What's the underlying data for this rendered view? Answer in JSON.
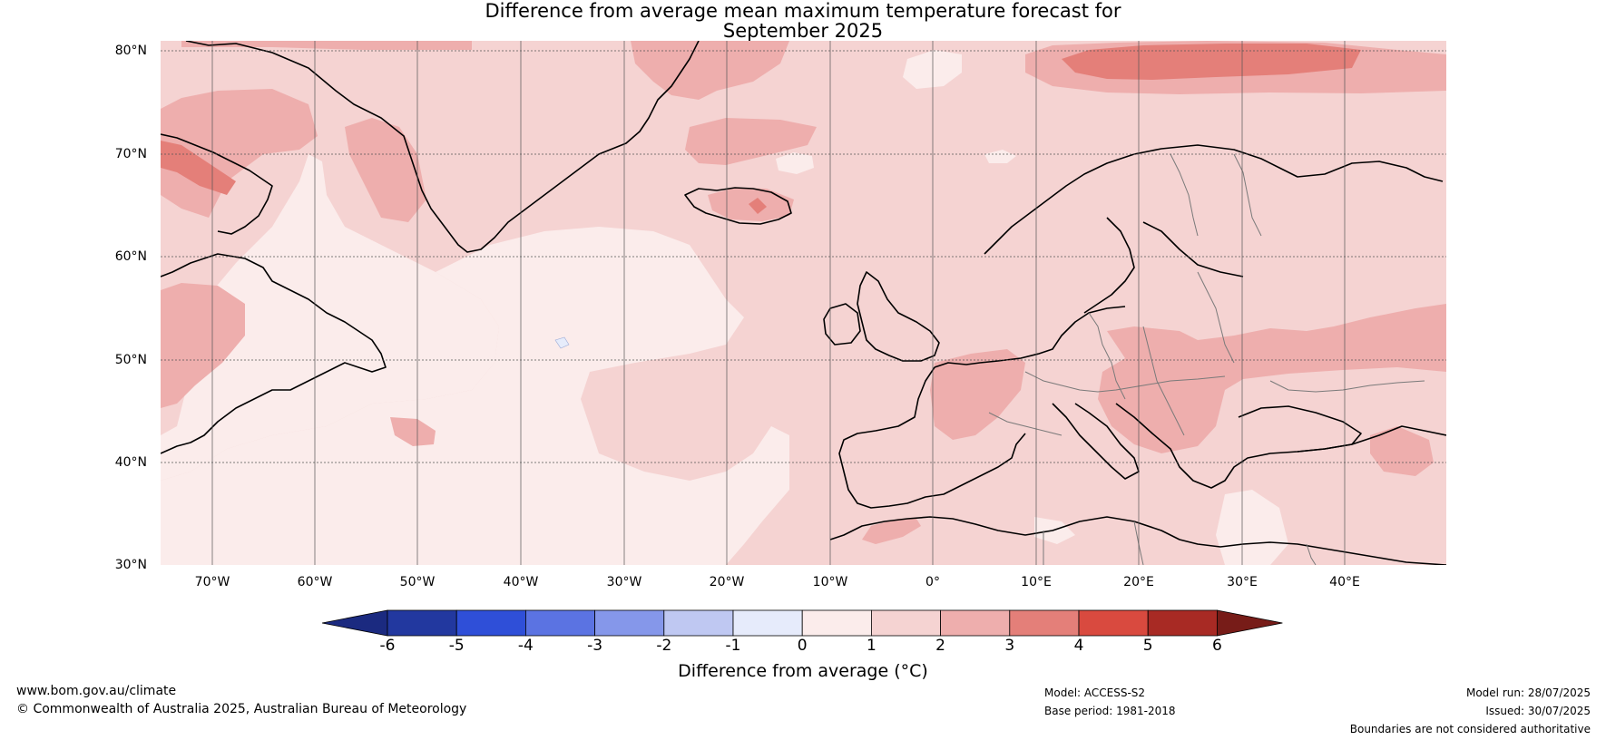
{
  "title": {
    "line1": "Difference from average mean maximum temperature forecast for",
    "line2": "September 2025"
  },
  "map": {
    "latitude_labels": [
      "80°N",
      "70°N",
      "60°N",
      "50°N",
      "40°N",
      "30°N"
    ],
    "longitude_labels": [
      "70°W",
      "60°W",
      "50°W",
      "40°W",
      "30°W",
      "20°W",
      "10°W",
      "0°",
      "10°E",
      "20°E",
      "30°E",
      "40°E"
    ],
    "palette": {
      "anom_0_1": "#fbeceb",
      "anom_1_2": "#f5d3d2",
      "anom_2_3": "#eeaead",
      "anom_3_4": "#e47f79",
      "anom_neg_1_0": "#e6ecfb",
      "coastline": "#000000",
      "borders": "#7a7a7a",
      "gridlines": "#555555"
    }
  },
  "colorbar": {
    "tick_labels": [
      "-6",
      "-5",
      "-4",
      "-3",
      "-2",
      "-1",
      "0",
      "1",
      "2",
      "3",
      "4",
      "5",
      "6"
    ],
    "colors": [
      "#22389f",
      "#2f4fd8",
      "#5b73e2",
      "#8597ea",
      "#bfc8f2",
      "#e6ebfb",
      "#fbeceb",
      "#f5d3d2",
      "#eeaead",
      "#e47f79",
      "#d94a3f",
      "#a82a24"
    ],
    "under_color": "#1b2a80",
    "over_color": "#771c18",
    "label": "Difference from average (°C)"
  },
  "footer": {
    "website": "www.bom.gov.au/climate",
    "copyright": "© Commonwealth of Australia 2025, Australian Bureau of Meteorology",
    "model": "Model: ACCESS-S2",
    "base_period": "Base period: 1981-2018",
    "model_run": "Model run: 28/07/2025",
    "issued": "Issued: 30/07/2025",
    "disclaimer": "Boundaries are not considered authoritative"
  }
}
